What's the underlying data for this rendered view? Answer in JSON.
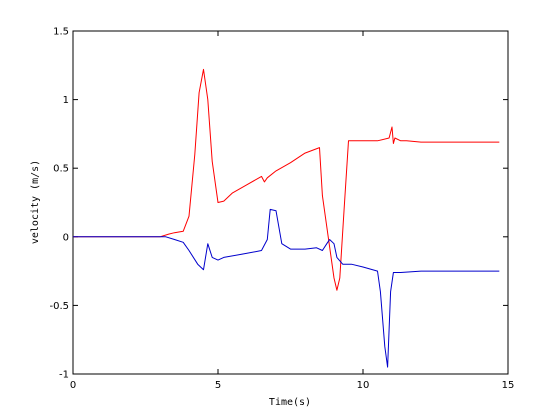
{
  "chart_data": {
    "type": "line",
    "title": "",
    "xlabel": "Time(s)",
    "ylabel": "velocity (m/s)",
    "xlim": [
      0,
      15
    ],
    "ylim": [
      -1,
      1.5
    ],
    "xticks": [
      0,
      5,
      10,
      15
    ],
    "yticks": [
      -1,
      -0.5,
      0,
      0.5,
      1,
      1.5
    ],
    "xtick_labels": [
      "0",
      "5",
      "10",
      "15"
    ],
    "ytick_labels": [
      "-1",
      "-0.5",
      "0",
      "0.5",
      "1",
      "1.5"
    ],
    "grid": false,
    "legend": "none",
    "series": [
      {
        "color": "#ff0000",
        "x": [
          0,
          3.0,
          3.3,
          3.5,
          3.8,
          4.0,
          4.2,
          4.35,
          4.5,
          4.65,
          4.8,
          5.0,
          5.2,
          5.5,
          6.0,
          6.5,
          6.6,
          6.7,
          7.0,
          7.5,
          8.0,
          8.5,
          8.6,
          8.8,
          9.0,
          9.1,
          9.2,
          9.35,
          9.5,
          10.0,
          10.5,
          10.9,
          11.0,
          11.05,
          11.1,
          11.3,
          11.5,
          12.0,
          13.0,
          14.0,
          14.7
        ],
        "y": [
          0,
          0,
          0.02,
          0.03,
          0.04,
          0.15,
          0.6,
          1.05,
          1.22,
          1.0,
          0.55,
          0.25,
          0.26,
          0.32,
          0.38,
          0.44,
          0.4,
          0.43,
          0.48,
          0.54,
          0.61,
          0.65,
          0.3,
          0.0,
          -0.3,
          -0.39,
          -0.3,
          0.2,
          0.7,
          0.7,
          0.7,
          0.72,
          0.8,
          0.68,
          0.72,
          0.7,
          0.7,
          0.69,
          0.69,
          0.69,
          0.69
        ]
      },
      {
        "color": "#0000cc",
        "x": [
          0,
          3.0,
          3.2,
          3.5,
          3.8,
          4.0,
          4.3,
          4.5,
          4.65,
          4.8,
          5.0,
          5.2,
          6.0,
          6.5,
          6.7,
          6.8,
          7.0,
          7.2,
          7.5,
          8.0,
          8.4,
          8.6,
          8.75,
          8.85,
          9.0,
          9.1,
          9.3,
          9.6,
          10.0,
          10.5,
          10.6,
          10.75,
          10.85,
          10.95,
          11.05,
          11.3,
          12.0,
          13.0,
          14.0,
          14.7
        ],
        "y": [
          0,
          0,
          0.0,
          -0.02,
          -0.04,
          -0.1,
          -0.2,
          -0.24,
          -0.05,
          -0.15,
          -0.17,
          -0.15,
          -0.12,
          -0.1,
          -0.02,
          0.2,
          0.19,
          -0.05,
          -0.09,
          -0.09,
          -0.08,
          -0.1,
          -0.05,
          -0.02,
          -0.05,
          -0.15,
          -0.2,
          -0.2,
          -0.22,
          -0.25,
          -0.4,
          -0.8,
          -0.95,
          -0.4,
          -0.26,
          -0.26,
          -0.25,
          -0.25,
          -0.25,
          -0.25
        ]
      }
    ]
  }
}
